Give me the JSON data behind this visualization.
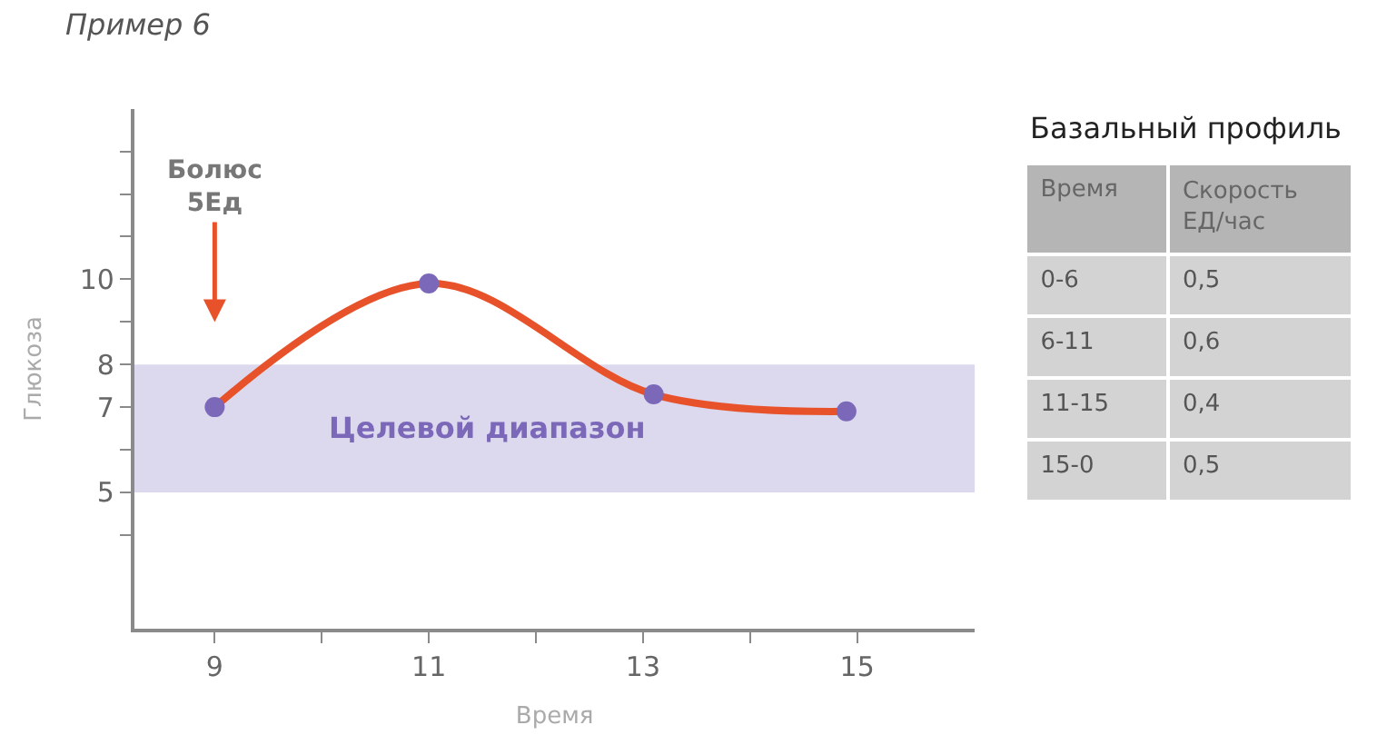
{
  "chart_data": [
    {
      "type": "line",
      "title": "Пример 6",
      "xlabel": "Время",
      "ylabel": "Глюкоза",
      "x": [
        9,
        11,
        13.1,
        14.9
      ],
      "series": [
        {
          "type": "line",
          "color": "#e8522a",
          "values": [
            7,
            9.9,
            7.3,
            6.9
          ],
          "marker": "none",
          "line_style": "solid"
        },
        {
          "type": "scatter",
          "color": "#7b68b8",
          "values": [
            7,
            9.9,
            7.3,
            6.9
          ],
          "marker": "circle"
        }
      ],
      "xlim": [
        8.25,
        16.1
      ],
      "xticks": [
        9,
        {
          "value": 10,
          "label": null
        },
        11,
        {
          "value": 12,
          "label": null
        },
        13,
        {
          "value": 14,
          "label": null
        },
        15
      ],
      "ylim": [
        1.8,
        14
      ],
      "yticks": [
        {
          "value": 4,
          "label": null
        },
        5,
        {
          "value": 6,
          "label": null
        },
        7,
        8,
        {
          "value": 9,
          "label": null
        },
        10,
        {
          "value": 11,
          "label": null
        },
        {
          "value": 12,
          "label": null
        },
        {
          "value": 13,
          "label": null
        }
      ],
      "bands": [
        {
          "axis": "y",
          "from": 5,
          "to": 8,
          "label": "Целевой диапазон",
          "color": "#dcd8ee"
        }
      ],
      "annotations": [
        "Болюс\n5Ед"
      ]
    },
    {
      "type": "other",
      "title": "Базальный профиль",
      "categories": [
        "Время",
        "Скорость\nЕД/час"
      ],
      "cell_labels": [
        [
          "0-6",
          "0,5"
        ],
        [
          "6-11",
          "0,6"
        ],
        [
          "11-15",
          "0,4"
        ],
        [
          "15-0",
          "0,5"
        ]
      ]
    }
  ]
}
